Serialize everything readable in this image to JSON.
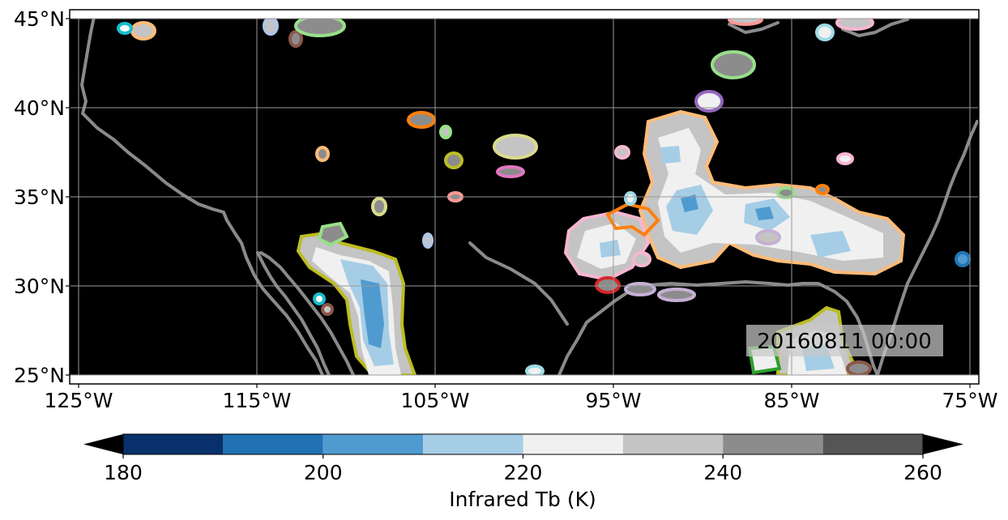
{
  "map": {
    "type": "map",
    "background_color": "#000000",
    "lon_range": [
      -125,
      -75
    ],
    "lat_range": [
      25,
      45
    ],
    "grid": true,
    "lon_ticks": [
      {
        "value": -125,
        "label": "125°W"
      },
      {
        "value": -115,
        "label": "115°W"
      },
      {
        "value": -105,
        "label": "105°W"
      },
      {
        "value": -95,
        "label": "95°W"
      },
      {
        "value": -85,
        "label": "85°W"
      },
      {
        "value": -75,
        "label": "75°W"
      }
    ],
    "lat_ticks": [
      {
        "value": 45,
        "label": "45°N"
      },
      {
        "value": 40,
        "label": "40°N"
      },
      {
        "value": 35,
        "label": "35°N"
      },
      {
        "value": 30,
        "label": "30°N"
      },
      {
        "value": 25,
        "label": "25°N"
      }
    ],
    "timestamp": "20160811 00:00"
  },
  "colorbar": {
    "label": "Infrared Tb (K)",
    "range": [
      180,
      260
    ],
    "extend": "both",
    "tick_values": [
      180,
      200,
      220,
      240,
      260
    ],
    "tick_labels": [
      "180",
      "200",
      "220",
      "240",
      "260"
    ],
    "bins": [
      {
        "from": 180,
        "to": 190,
        "color": "#08306b"
      },
      {
        "from": 190,
        "to": 200,
        "color": "#2171b5"
      },
      {
        "from": 200,
        "to": 210,
        "color": "#4f9bd0"
      },
      {
        "from": 210,
        "to": 220,
        "color": "#a6cde6"
      },
      {
        "from": 220,
        "to": 230,
        "color": "#f0f0f0"
      },
      {
        "from": 230,
        "to": 240,
        "color": "#c4c4c4"
      },
      {
        "from": 240,
        "to": 250,
        "color": "#8c8c8c"
      },
      {
        "from": 250,
        "to": 260,
        "color": "#555555"
      }
    ],
    "under_color": "#000000",
    "over_color": "#000000"
  },
  "colors": {
    "coastline": "#8a8a8a",
    "gridline": "#9a9a9a",
    "storm_outlines": [
      "#ffbb78",
      "#ff7f0e",
      "#98df8a",
      "#bcbd22",
      "#17becf",
      "#f7b6d2",
      "#c5b0d5",
      "#9467bd",
      "#d62728",
      "#8c564b",
      "#e377c2",
      "#aec7e8",
      "#1f77b4",
      "#2ca02c",
      "#dbdb8d",
      "#9edae5",
      "#ff9896"
    ]
  }
}
